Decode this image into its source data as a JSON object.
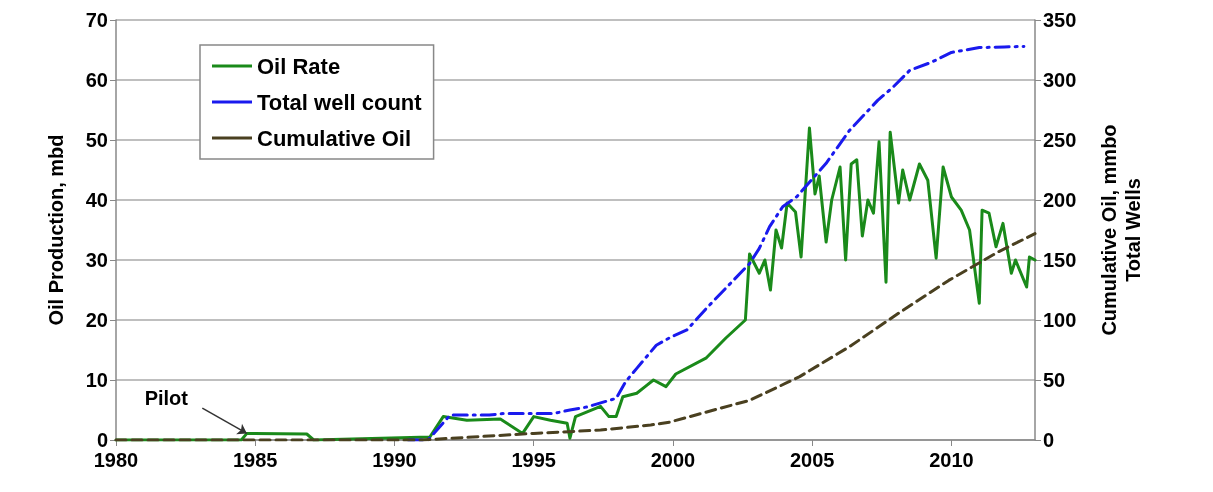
{
  "chart_data": {
    "type": "line",
    "xlim": [
      1980,
      2013
    ],
    "xticks": [
      1980,
      1985,
      1990,
      1995,
      2000,
      2005,
      2010
    ],
    "ylim": [
      0,
      70
    ],
    "yticks": [
      0,
      10,
      20,
      30,
      40,
      50,
      60,
      70
    ],
    "y2lim": [
      0,
      350
    ],
    "y2ticks": [
      0,
      50,
      100,
      150,
      200,
      250,
      300,
      350
    ],
    "ylabel": "Oil Production, mbd",
    "y2label": "Cumulative Oil, mmbo\nTotal Wells",
    "grid": "y",
    "legend": "top left",
    "marker": "none",
    "annotations": [
      {
        "text": "Pilot",
        "x": 1984.7,
        "y": 1.1
      }
    ],
    "series": [
      {
        "name": "Oil Rate",
        "color": "#1a8a1a",
        "line_style": "solid",
        "x": [
          1980,
          1984.5,
          1984.7,
          1986.85,
          1987.1,
          1991.27,
          1991.75,
          1992.6,
          1993.8,
          1994.6,
          1995,
          1995.6,
          1996.2,
          1996.3,
          1996.5,
          1997.4,
          1997.7,
          1997.96,
          1998.2,
          1998.7,
          1999.0,
          1999.3,
          1999.75,
          2000.1,
          2001.2,
          2001.9,
          2002.6,
          2002.75,
          2003.1,
          2003.3,
          2003.5,
          2003.7,
          2003.9,
          2004.1,
          2004.4,
          2004.6,
          2004.9,
          2005.1,
          2005.25,
          2005.5,
          2005.7,
          2006.0,
          2006.2,
          2006.4,
          2006.6,
          2006.8,
          2007.0,
          2007.2,
          2007.4,
          2007.65,
          2007.8,
          2008.1,
          2008.25,
          2008.5,
          2008.85,
          2009.15,
          2009.45,
          2009.7,
          2010.0,
          2010.35,
          2010.65,
          2011.0,
          2011.1,
          2011.35,
          2011.6,
          2011.85,
          2012.15,
          2012.3,
          2012.7,
          2012.8,
          2013.0
        ],
        "values": [
          0,
          0,
          1.1,
          1,
          0,
          0.5,
          3.9,
          3.3,
          3.5,
          1.1,
          3.9,
          3.3,
          2.8,
          0.3,
          3.9,
          5.6,
          3.9,
          3.9,
          7.2,
          7.8,
          8.9,
          10,
          8.9,
          11,
          13.7,
          17,
          20,
          31,
          27.8,
          30,
          25,
          35,
          32,
          39.5,
          38,
          30.5,
          52,
          41,
          44,
          33,
          40,
          45.5,
          30,
          46,
          46.7,
          34,
          40,
          37.8,
          49.7,
          26.3,
          51.3,
          39.5,
          45,
          40,
          46,
          43.3,
          30.3,
          45.5,
          40.5,
          38.3,
          35,
          22.8,
          38.3,
          37.8,
          32.2,
          36.1,
          27.8,
          30,
          25.5,
          30.5,
          30
        ]
      },
      {
        "name": "Total well count",
        "color": "#1a1aee",
        "line_style": "dashdot",
        "axis": "y2",
        "x": [
          1990.5,
          1991.2,
          1992.0,
          1993.4,
          1993.9,
          1995.7,
          1996.3,
          1996.9,
          1997.96,
          1998.3,
          1998.7,
          1999.4,
          1999.94,
          2000.5,
          2001.2,
          2002.0,
          2002.75,
          2003.1,
          2003.47,
          2003.94,
          2004.45,
          2005.5,
          2006.34,
          2007.35,
          2007.9,
          2008.5,
          2009.3,
          2010.0,
          2011.0,
          2011.9,
          2012.6
        ],
        "values": [
          0,
          0,
          20.8,
          20.8,
          22,
          22,
          25,
          27.5,
          34.7,
          48.6,
          59.7,
          79,
          86,
          91.7,
          109.7,
          129,
          147,
          159.7,
          177.8,
          194.4,
          202.8,
          230.6,
          258,
          283,
          294,
          308,
          315,
          323,
          327,
          327.5,
          328
        ]
      },
      {
        "name": "Cumulative Oil",
        "color": "#4a4020",
        "line_style": "dashed",
        "axis": "y2",
        "x": [
          1980,
          1991,
          1995,
          1997.4,
          1999.2,
          1999.9,
          2002.1,
          2002.75,
          2004.55,
          2006.34,
          2008.1,
          2009.9,
          2011.7,
          2013.0
        ],
        "values": [
          0,
          0,
          5.5,
          8.3,
          12.5,
          15,
          29,
          33,
          52.8,
          77.8,
          105.6,
          133,
          157,
          172
        ]
      }
    ]
  }
}
